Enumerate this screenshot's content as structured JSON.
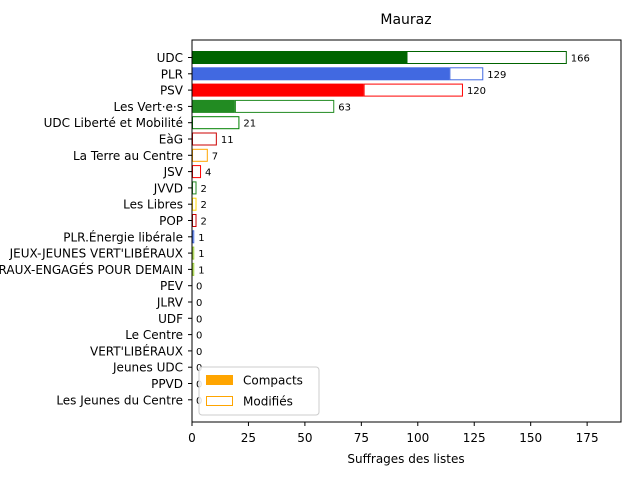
{
  "chart_data": {
    "type": "bar",
    "orientation": "horizontal",
    "title": "Mauraz",
    "xlabel": "Suffrages des listes",
    "ylabel": "",
    "xlim": [
      0,
      190
    ],
    "xticks": [
      0,
      25,
      50,
      75,
      100,
      125,
      150,
      175
    ],
    "categories": [
      "UDC",
      "PLR",
      "PSV",
      "Les Vert·e·s",
      "UDC Liberté et Mobilité",
      "EàG",
      "La Terre au Centre",
      "JSV",
      "JVVD",
      "Les Libres",
      "POP",
      "PLR.Énergie libérale",
      "JEUX-JEUNES VERT'LIBÉRAUX",
      "VERT'LIBÉRAUX-ENGAGÉS POUR DEMAIN",
      "PEV",
      "JLRV",
      "UDF",
      "Le Centre",
      "VERT'LIBÉRAUX",
      "Jeunes UDC",
      "PPVD",
      "Les Jeunes du Centre"
    ],
    "colors": [
      "#006400",
      "#4169e1",
      "#ff0000",
      "#228b22",
      "#008000",
      "#cc0000",
      "#ffa500",
      "#ff0000",
      "#228b22",
      "#ffd700",
      "#cc0000",
      "#4169e1",
      "#9acd32",
      "#9acd32",
      "#ffd700",
      "#4169e1",
      "#006400",
      "#ffa500",
      "#9acd32",
      "#006400",
      "#888888",
      "#ffa500"
    ],
    "series": [
      {
        "name": "Compacts",
        "values": [
          95,
          114,
          76,
          19,
          0,
          0,
          0,
          0,
          0,
          0,
          0,
          0,
          0,
          0,
          0,
          0,
          0,
          0,
          0,
          0,
          0,
          0
        ]
      },
      {
        "name": "Modifiés",
        "values": [
          71,
          15,
          44,
          44,
          21,
          11,
          7,
          4,
          2,
          2,
          2,
          1,
          1,
          1,
          0,
          0,
          0,
          0,
          0,
          0,
          0,
          0
        ]
      }
    ],
    "totals": [
      166,
      129,
      120,
      63,
      21,
      11,
      7,
      4,
      2,
      2,
      2,
      1,
      1,
      1,
      0,
      0,
      0,
      0,
      0,
      0,
      0,
      0
    ],
    "legend": {
      "placement": "lower-left",
      "entries": [
        {
          "label": "Compacts",
          "color": "#ffa500",
          "style": "filled"
        },
        {
          "label": "Modifiés",
          "color": "#ffa500",
          "style": "outline"
        }
      ]
    }
  }
}
